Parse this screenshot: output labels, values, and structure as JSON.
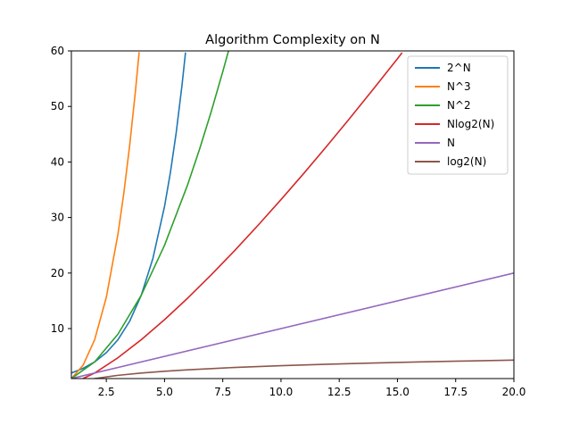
{
  "chart_data": {
    "type": "line",
    "title": "Algorithm Complexity on N",
    "xlabel": "",
    "ylabel": "",
    "xlim": [
      1,
      20
    ],
    "ylim": [
      1,
      60
    ],
    "x_ticks": [
      2.5,
      5.0,
      7.5,
      10.0,
      12.5,
      15.0,
      17.5,
      20.0
    ],
    "x_tick_labels": [
      "2.5",
      "5.0",
      "7.5",
      "10.0",
      "12.5",
      "15.0",
      "17.5",
      "20.0"
    ],
    "y_ticks": [
      10,
      20,
      30,
      40,
      50,
      60
    ],
    "y_tick_labels": [
      "10",
      "20",
      "30",
      "40",
      "50",
      "60"
    ],
    "grid": false,
    "legend_position": "top-right",
    "series": [
      {
        "name": "2^N",
        "color": "#1f77b4",
        "x": [
          1,
          1.5,
          2,
          2.5,
          3,
          3.5,
          4,
          4.5,
          5,
          5.25,
          5.5,
          5.75,
          5.9
        ],
        "y": [
          2,
          2.83,
          4,
          5.66,
          8,
          11.31,
          16,
          22.63,
          32,
          38.05,
          45.25,
          53.82,
          59.71
        ]
      },
      {
        "name": "N^3",
        "color": "#ff7f0e",
        "x": [
          1,
          1.5,
          2,
          2.5,
          3,
          3.25,
          3.5,
          3.75,
          3.91
        ],
        "y": [
          1,
          3.38,
          8,
          15.63,
          27,
          34.33,
          42.88,
          52.73,
          59.78
        ]
      },
      {
        "name": "N^2",
        "color": "#2ca02c",
        "x": [
          1,
          2,
          3,
          4,
          5,
          6,
          6.5,
          7,
          7.5,
          7.75
        ],
        "y": [
          1,
          4,
          9,
          16,
          25,
          36,
          42.25,
          49,
          56.25,
          60.06
        ]
      },
      {
        "name": "Nlog2(N)",
        "color": "#d62728",
        "x": [
          1,
          2,
          3,
          4,
          5,
          6,
          7,
          8,
          9,
          10,
          11,
          12,
          13,
          14,
          15,
          15.2
        ],
        "y": [
          0,
          2,
          4.75,
          8,
          11.61,
          15.51,
          19.65,
          24,
          28.53,
          33.22,
          38.05,
          43.02,
          48.11,
          53.3,
          58.6,
          59.67
        ]
      },
      {
        "name": "N",
        "color": "#9467bd",
        "x": [
          1,
          20
        ],
        "y": [
          1,
          20
        ]
      },
      {
        "name": "log2(N)",
        "color": "#8c564b",
        "x": [
          1,
          1.5,
          2,
          3,
          4,
          5,
          6,
          8,
          10,
          12,
          14,
          16,
          18,
          20
        ],
        "y": [
          0,
          0.58,
          1,
          1.58,
          2,
          2.32,
          2.58,
          3,
          3.32,
          3.58,
          3.81,
          4,
          4.17,
          4.32
        ]
      }
    ]
  }
}
